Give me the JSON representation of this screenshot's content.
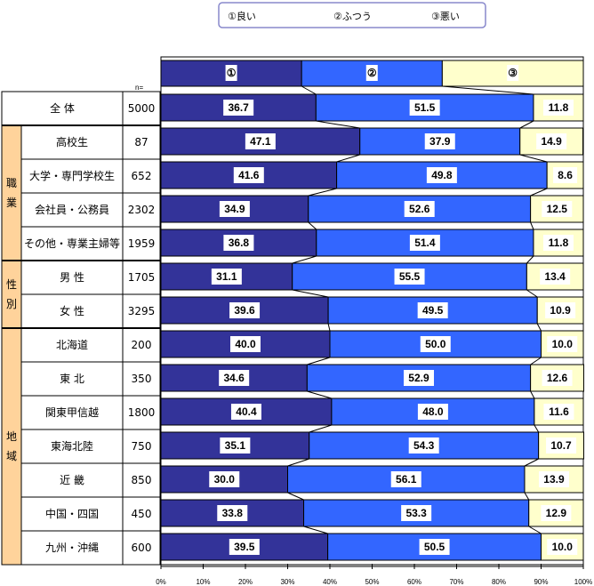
{
  "chart_data": {
    "type": "bar",
    "stacked": true,
    "orientation": "horizontal",
    "legend": {
      "position": "top",
      "entries": [
        "①良い",
        "②ふつう",
        "③悪い"
      ]
    },
    "header_labels": [
      "①",
      "②",
      "③"
    ],
    "n_label": "n=",
    "xlim": [
      0,
      100
    ],
    "x_ticks": [
      "0%",
      "10%",
      "20%",
      "30%",
      "40%",
      "50%",
      "60%",
      "70%",
      "80%",
      "90%",
      "100%"
    ],
    "colors": [
      "#333399",
      "#3366FF",
      "#FFFFCC"
    ],
    "groups": [
      {
        "label": "職業",
        "rows": [
          1,
          2,
          3,
          4
        ]
      },
      {
        "label": "性別",
        "rows": [
          5,
          6
        ]
      },
      {
        "label": "地域",
        "rows": [
          7,
          8,
          9,
          10,
          11,
          12,
          13
        ]
      }
    ],
    "categories": [
      "全 体",
      "高校生",
      "大学・専門学校生",
      "会社員・公務員",
      "その他・専業主婦等",
      "男 性",
      "女 性",
      "北海道",
      "東 北",
      "関東甲信越",
      "東海北陸",
      "近 畿",
      "中国・四国",
      "九州・沖縄"
    ],
    "n": [
      "5000",
      "87",
      "652",
      "2302",
      "1959",
      "1705",
      "3295",
      "200",
      "350",
      "1800",
      "750",
      "850",
      "450",
      "600"
    ],
    "series": [
      {
        "name": "①良い",
        "values": [
          36.7,
          47.1,
          41.6,
          34.9,
          36.8,
          31.1,
          39.6,
          40.0,
          34.6,
          40.4,
          35.1,
          30.0,
          33.8,
          39.5
        ]
      },
      {
        "name": "②ふつう",
        "values": [
          51.5,
          37.9,
          49.8,
          52.6,
          51.4,
          55.5,
          49.5,
          50.0,
          52.9,
          48.0,
          54.3,
          56.1,
          53.3,
          50.5
        ]
      },
      {
        "name": "③悪い",
        "values": [
          11.8,
          14.9,
          8.6,
          12.5,
          11.8,
          13.4,
          10.9,
          10.0,
          12.6,
          11.6,
          10.7,
          13.9,
          12.9,
          10.0
        ]
      }
    ]
  }
}
